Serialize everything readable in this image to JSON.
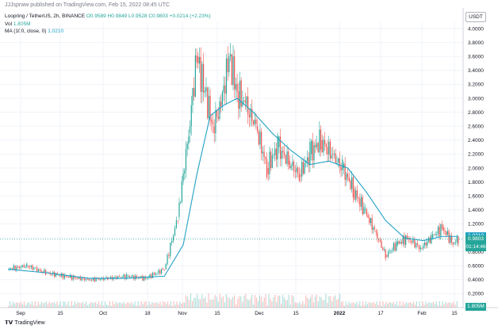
{
  "publisher": "JJJsprww published on TradingView.com, Feb 15, 2022 08:45 UTC",
  "legend": {
    "symbol": "Loopring / TetherUS, 2h, BINANCE",
    "ohlc": "O0.9589 H0.9849 L0.9528 C0.9803 +0.0214 (+2.23%)",
    "vol_label": "Vol",
    "vol_value": "1.805M",
    "ma_label": "MA (100, close, 0)",
    "ma_value": "1.0210"
  },
  "currency": "USDT",
  "price_labels": {
    "ma": "1.0210",
    "close": "0.9803",
    "countdown": "01:14:46",
    "volume": "1.805M"
  },
  "watermark": "TradingView",
  "colors": {
    "up": "#26a69a",
    "down": "#ef5350",
    "ma": "#22a1c4",
    "grid": "#f0f3fa"
  },
  "chart_data": {
    "type": "line",
    "title": "Loopring / TetherUS, 2h, BINANCE",
    "y_ticks": [
      "4.0000",
      "3.8000",
      "3.6000",
      "3.4000",
      "3.2000",
      "3.0000",
      "2.8000",
      "2.6000",
      "2.4000",
      "2.2000",
      "2.0000",
      "1.8000",
      "1.6000",
      "1.4000",
      "1.2000",
      "1.0000",
      "0.8000",
      "0.6000",
      "0.4000",
      "0.2000"
    ],
    "x_ticks": [
      "Sep",
      "15",
      "Oct",
      "18",
      "Nov",
      "15",
      "Dec",
      "15",
      "2022",
      "17",
      "Feb",
      "15"
    ],
    "ylim": [
      0,
      4.1
    ],
    "series": [
      {
        "name": "Loopring / TetherUS",
        "x": [
          "Sep 1",
          "Sep 8",
          "Sep 15",
          "Sep 22",
          "Oct 1",
          "Oct 8",
          "Oct 15",
          "Oct 22",
          "Oct 29",
          "Nov 3",
          "Nov 7",
          "Nov 10",
          "Nov 13",
          "Nov 16",
          "Nov 19",
          "Nov 22",
          "Nov 25",
          "Nov 28",
          "Dec 2",
          "Dec 6",
          "Dec 10",
          "Dec 14",
          "Dec 18",
          "Dec 22",
          "Dec 26",
          "Dec 30",
          "Jan 3",
          "Jan 7",
          "Jan 11",
          "Jan 15",
          "Jan 19",
          "Jan 23",
          "Jan 27",
          "Feb 1",
          "Feb 5",
          "Feb 9",
          "Feb 13",
          "Feb 15"
        ],
        "values": [
          0.55,
          0.6,
          0.5,
          0.45,
          0.4,
          0.42,
          0.45,
          0.42,
          0.55,
          1.3,
          2.5,
          3.6,
          3.1,
          2.6,
          2.9,
          3.6,
          3.1,
          2.9,
          2.6,
          2.0,
          2.3,
          2.1,
          1.9,
          2.2,
          2.4,
          2.2,
          2.0,
          1.7,
          1.4,
          1.1,
          0.75,
          0.9,
          1.0,
          0.85,
          1.0,
          1.15,
          0.92,
          0.98
        ]
      },
      {
        "name": "MA (100, close, 0)",
        "x": [
          "Sep 1",
          "Sep 15",
          "Oct 1",
          "Oct 15",
          "Oct 29",
          "Nov 5",
          "Nov 10",
          "Nov 15",
          "Nov 20",
          "Nov 25",
          "Dec 1",
          "Dec 8",
          "Dec 15",
          "Dec 22",
          "Dec 29",
          "Jan 5",
          "Jan 12",
          "Jan 19",
          "Jan 26",
          "Feb 2",
          "Feb 9",
          "Feb 15"
        ],
        "values": [
          0.55,
          0.5,
          0.42,
          0.42,
          0.45,
          0.9,
          1.9,
          2.75,
          2.9,
          3.0,
          2.8,
          2.5,
          2.25,
          2.05,
          2.1,
          2.0,
          1.65,
          1.25,
          1.0,
          0.96,
          1.02,
          1.02
        ]
      }
    ]
  }
}
